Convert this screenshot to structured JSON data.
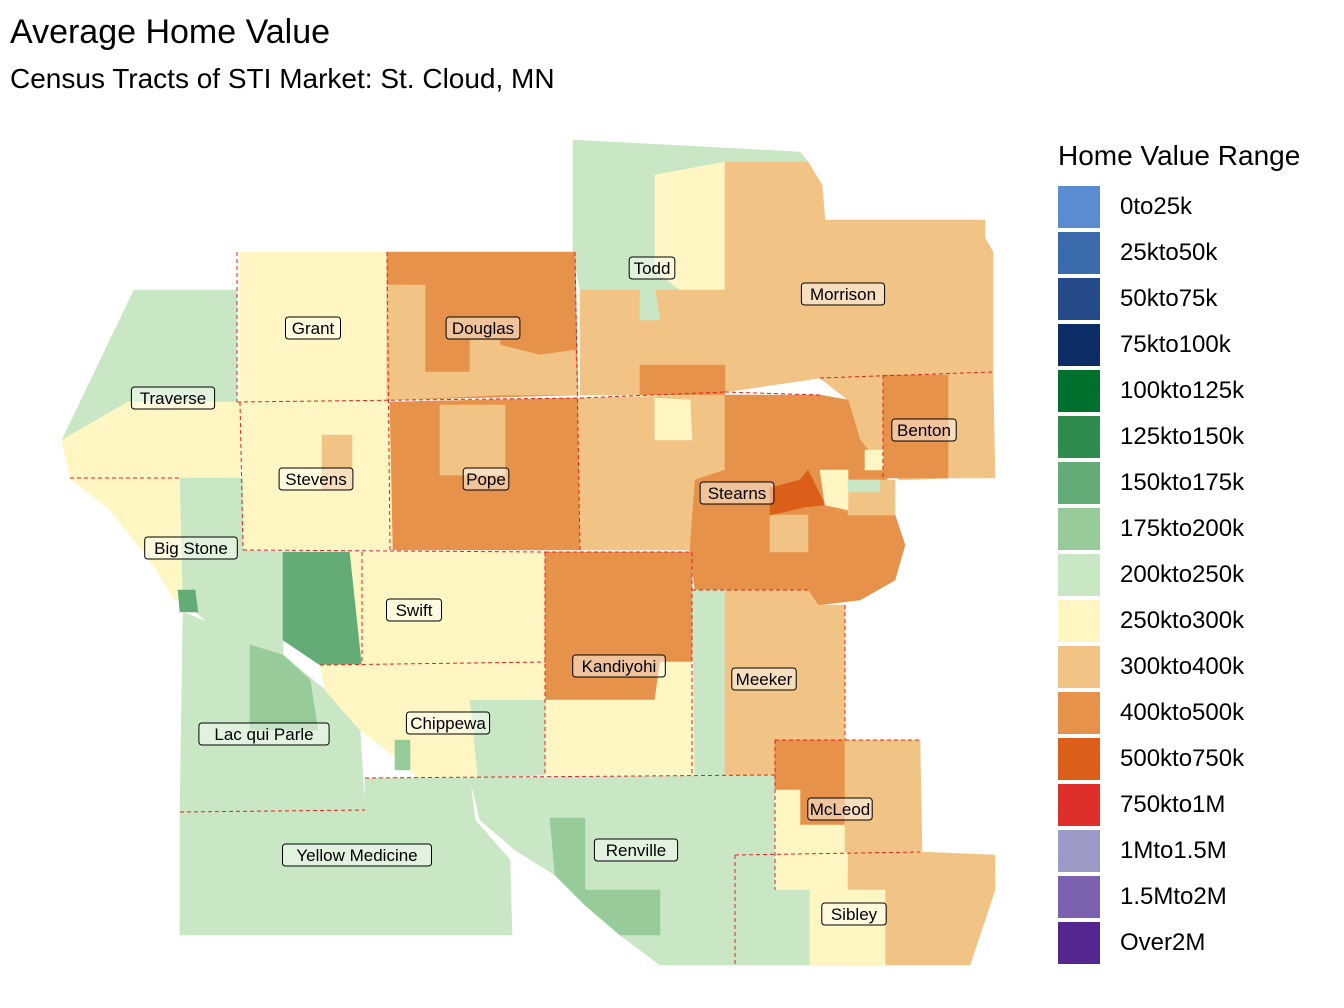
{
  "title": "Average Home Value",
  "subtitle": "Census Tracts of STI Market: St. Cloud, MN",
  "legend": {
    "title": "Home Value Range",
    "items": [
      {
        "label": "0to25k",
        "color": "#5b8bd0"
      },
      {
        "label": "25kto50k",
        "color": "#3b6aad"
      },
      {
        "label": "50kto75k",
        "color": "#244a8a"
      },
      {
        "label": "75kto100k",
        "color": "#0c2d66"
      },
      {
        "label": "100kto125k",
        "color": "#00702e"
      },
      {
        "label": "125kto150k",
        "color": "#2f8c4f"
      },
      {
        "label": "150kto175k",
        "color": "#63ac77"
      },
      {
        "label": "175kto200k",
        "color": "#98cb9a"
      },
      {
        "label": "200kto250k",
        "color": "#c9e7c4"
      },
      {
        "label": "250kto300k",
        "color": "#fff6c4"
      },
      {
        "label": "300kto400k",
        "color": "#f1c485"
      },
      {
        "label": "400kto500k",
        "color": "#e6924a"
      },
      {
        "label": "500kto750k",
        "color": "#db5f18"
      },
      {
        "label": "750kto1M",
        "color": "#df2f2a"
      },
      {
        "label": "1Mto1.5M",
        "color": "#9e9ac8"
      },
      {
        "label": "1.5Mto2M",
        "color": "#7b61b0"
      },
      {
        "label": "Over2M",
        "color": "#54278f"
      }
    ]
  },
  "counties": [
    {
      "name": "Todd",
      "range": "250kto300k"
    },
    {
      "name": "Morrison",
      "range": "300kto400k"
    },
    {
      "name": "Grant",
      "range": "250kto300k"
    },
    {
      "name": "Douglas",
      "range": "400kto500k"
    },
    {
      "name": "Traverse",
      "range": "200kto250k"
    },
    {
      "name": "Benton",
      "range": "400kto500k"
    },
    {
      "name": "Stevens",
      "range": "250kto300k"
    },
    {
      "name": "Pope",
      "range": "400kto500k"
    },
    {
      "name": "Stearns",
      "range": "400kto500k"
    },
    {
      "name": "Big Stone",
      "range": "200kto250k"
    },
    {
      "name": "Swift",
      "range": "250kto300k"
    },
    {
      "name": "Kandiyohi",
      "range": "400kto500k"
    },
    {
      "name": "Meeker",
      "range": "300kto400k"
    },
    {
      "name": "Lac qui Parle",
      "range": "200kto250k"
    },
    {
      "name": "Chippewa",
      "range": "250kto300k"
    },
    {
      "name": "McLeod",
      "range": "300kto400k"
    },
    {
      "name": "Renville",
      "range": "200kto250k"
    },
    {
      "name": "Yellow Medicine",
      "range": "200kto250k"
    },
    {
      "name": "Sibley",
      "range": "300kto400k"
    }
  ]
}
